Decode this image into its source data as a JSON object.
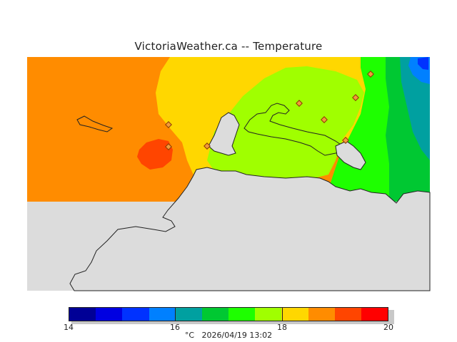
{
  "title": "VictoriaWeather.ca  --  Temperature",
  "colors": {
    "t16_17": "#a0ff00",
    "t17_18": "#ffd700",
    "t18_19": "#ff8c00",
    "t19_20": "#ff4500",
    "green_mid": "#00c832",
    "teal": "#00a0a0",
    "blue": "#0080ff",
    "land_gray": "#dcdcdc"
  },
  "colorbar": {
    "swatches": [
      "#000096",
      "#0000e1",
      "#0032ff",
      "#0080ff",
      "#00a0a0",
      "#00c832",
      "#1eff00",
      "#a0ff00",
      "#ffd700",
      "#ff8c00",
      "#ff4500",
      "#ff0000"
    ],
    "ticks": [
      {
        "value": 14,
        "label": "14"
      },
      {
        "value": 16,
        "label": "16"
      },
      {
        "value": 18,
        "label": "18"
      },
      {
        "value": 20,
        "label": "20"
      }
    ],
    "min": 14,
    "max": 20
  },
  "footer": {
    "unit": "°C",
    "timestamp": "2026/04/19 13:02"
  }
}
